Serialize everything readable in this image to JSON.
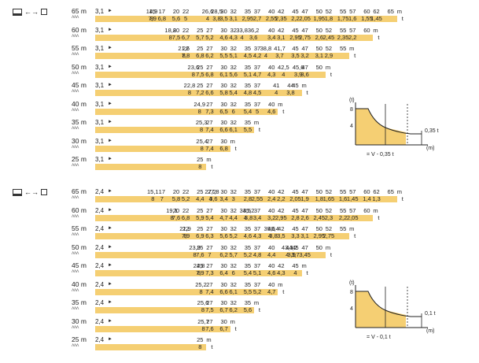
{
  "sections": [
    {
      "header": {
        "mode_icon": "double-hook-icon",
        "text": "←→"
      },
      "rows": [
        {
          "jib": "65 m",
          "boom": "ᐱᐱᐱ",
          "min_radius": "3,1",
          "radius": [
            "14,9",
            "15",
            "17",
            "20",
            "22",
            "26,6",
            "28,5",
            "30",
            "32",
            "35",
            "37",
            "40",
            "42",
            "45",
            "47",
            "50",
            "52",
            "55",
            "57",
            "60",
            "62",
            "65"
          ],
          "load": [
            "8",
            "7,9",
            "6,8",
            "5,6",
            "5",
            "4",
            "3,8",
            "3,5",
            "3,1",
            "2,95",
            "2,7",
            "2,55",
            "2,35",
            "2,2",
            "2,05",
            "1,95",
            "1,8",
            "1,75",
            "1,6",
            "1,55",
            "1,45"
          ],
          "radius_unit": "m",
          "load_unit": "t"
        },
        {
          "jib": "60 m",
          "boom": "ᐱᐱᐱ",
          "min_radius": "3,1",
          "radius": [
            "18,8",
            "20",
            "22",
            "25",
            "27",
            "30",
            "32",
            "33,8",
            "36,2",
            "40",
            "42",
            "45",
            "47",
            "50",
            "52",
            "55",
            "57",
            "60"
          ],
          "load": [
            "8",
            "7,5",
            "6,7",
            "5,7",
            "5,2",
            "4,6",
            "4,3",
            "4",
            "3,6",
            "3,4",
            "3,1",
            "2,95",
            "2,75",
            "2,6",
            "2,45",
            "2,35",
            "2,2"
          ],
          "radius_unit": "m",
          "load_unit": "t"
        },
        {
          "jib": "55 m",
          "boom": "ᐱᐱᐱ",
          "min_radius": "3,1",
          "radius": [
            "21,6",
            "22",
            "25",
            "27",
            "30",
            "32",
            "35",
            "37",
            "38,8",
            "41,7",
            "45",
            "47",
            "50",
            "52",
            "55"
          ],
          "load": [
            "8",
            "7,8",
            "6,8",
            "6,2",
            "5,5",
            "5,1",
            "4,5",
            "4,2",
            "4",
            "3,7",
            "3,5",
            "3,2",
            "3,1",
            "2,9"
          ],
          "radius_unit": "m",
          "load_unit": "t"
        },
        {
          "jib": "50 m",
          "boom": "ᐱᐱᐱ",
          "min_radius": "3,1",
          "radius": [
            "23,6",
            "25",
            "27",
            "30",
            "32",
            "35",
            "37",
            "40",
            "42,5",
            "45,6",
            "47",
            "50"
          ],
          "load": [
            "8",
            "7,5",
            "6,8",
            "6,1",
            "5,6",
            "5,1",
            "4,7",
            "4,3",
            "4",
            "3,9",
            "3,6"
          ],
          "radius_unit": "m",
          "load_unit": "t"
        },
        {
          "jib": "45 m",
          "boom": "ᐱᐱᐱ",
          "min_radius": "3,1",
          "radius": [
            "22,8",
            "25",
            "27",
            "30",
            "32",
            "35",
            "37",
            "41",
            "44",
            "45"
          ],
          "load": [
            "8",
            "7,2",
            "6,6",
            "5,8",
            "5,4",
            "4,8",
            "4,5",
            "4",
            "3,8"
          ],
          "radius_unit": "m",
          "load_unit": "t"
        },
        {
          "jib": "40 m",
          "boom": "ᐱᐱᐱ",
          "min_radius": "3,1",
          "radius": [
            "24,9",
            "27",
            "30",
            "32",
            "35",
            "37",
            "40"
          ],
          "load": [
            "8",
            "7,3",
            "6,5",
            "6",
            "5,4",
            "5",
            "4,6"
          ],
          "radius_unit": "m",
          "load_unit": "t"
        },
        {
          "jib": "35 m",
          "boom": "ᐱᐱᐱ",
          "min_radius": "3,1",
          "radius": [
            "25,3",
            "27",
            "30",
            "32",
            "35"
          ],
          "load": [
            "8",
            "7,4",
            "6,6",
            "6,1",
            "5,5"
          ],
          "radius_unit": "m",
          "load_unit": "t"
        },
        {
          "jib": "30 m",
          "boom": "ᐱᐱᐱ",
          "min_radius": "3,1",
          "radius": [
            "25,4",
            "27",
            "30"
          ],
          "load": [
            "8",
            "7,4",
            "6,8"
          ],
          "radius_unit": "m",
          "load_unit": "t"
        },
        {
          "jib": "25 m",
          "boom": "ᐱᐱᐱ",
          "min_radius": "3,1",
          "radius": [
            "25"
          ],
          "load": [
            "8"
          ],
          "radius_unit": "m",
          "load_unit": "t"
        }
      ],
      "inset": {
        "y_label": "(t)",
        "y_max": "8",
        "y_mid": "4",
        "x_label": "(m)",
        "offset_label": "0,35 t",
        "legend": "= ᐯ - 0,35 t"
      }
    },
    {
      "header": {
        "mode_icon": "single-hook-icon",
        "text": "←→"
      },
      "rows": [
        {
          "jib": "65 m",
          "boom": "ᐱᐱᐱ",
          "min_radius": "2,4",
          "radius": [
            "15,1",
            "17",
            "20",
            "22",
            "25",
            "27,2",
            "27,8",
            "30",
            "32",
            "35",
            "37",
            "40",
            "42",
            "45",
            "47",
            "50",
            "52",
            "55",
            "57",
            "60",
            "62",
            "65"
          ],
          "load": [
            "8",
            "7",
            "5,8",
            "5,2",
            "4,4",
            "4",
            "3,6",
            "3,4",
            "3",
            "2,8",
            "2,55",
            "2,4",
            "2,2",
            "2,05",
            "1,9",
            "1,8",
            "1,65",
            "1,6",
            "1,45",
            "1,4",
            "1,3"
          ],
          "radius_unit": "m",
          "load_unit": "t"
        },
        {
          "jib": "60 m",
          "boom": "ᐱᐱᐱ",
          "min_radius": "2,4",
          "radius": [
            "19,1",
            "20",
            "22",
            "25",
            "27",
            "30",
            "32",
            "34,5",
            "35,2",
            "37",
            "40",
            "42",
            "45",
            "47",
            "50",
            "52",
            "55",
            "57",
            "60"
          ],
          "load": [
            "8",
            "7,6",
            "6,8",
            "5,9",
            "5,4",
            "4,7",
            "4,4",
            "4",
            "3,8",
            "3,4",
            "3,2",
            "2,95",
            "2,8",
            "2,6",
            "2,45",
            "2,3",
            "2,2",
            "2,05"
          ],
          "radius_unit": "m",
          "load_unit": "t"
        },
        {
          "jib": "55 m",
          "boom": "ᐱᐱᐱ",
          "min_radius": "2,4",
          "radius": [
            "21,9",
            "22",
            "25",
            "27",
            "30",
            "32",
            "35",
            "37",
            "39,6",
            "40,4",
            "42",
            "45",
            "47",
            "50",
            "52",
            "55"
          ],
          "load": [
            "8",
            "7,9",
            "6,9",
            "6,3",
            "5,6",
            "5,2",
            "4,6",
            "4,3",
            "4",
            "3,8",
            "3,5",
            "3,3",
            "3,1",
            "2,95",
            "2,75"
          ],
          "radius_unit": "m",
          "load_unit": "t"
        },
        {
          "jib": "50 m",
          "boom": "ᐱᐱᐱ",
          "min_radius": "2,4",
          "radius": [
            "23,9",
            "25",
            "27",
            "30",
            "32",
            "35",
            "37",
            "40",
            "43,3",
            "44,2",
            "45",
            "47",
            "50"
          ],
          "load": [
            "8",
            "7,6",
            "7",
            "6,2",
            "5,7",
            "5,2",
            "4,8",
            "4,4",
            "4",
            "3,9",
            "3,7",
            "3,45"
          ],
          "radius_unit": "m",
          "load_unit": "t"
        },
        {
          "jib": "45 m",
          "boom": "ᐱᐱᐱ",
          "min_radius": "2,4",
          "radius": [
            "24,8",
            "25",
            "27",
            "30",
            "32",
            "35",
            "37",
            "40",
            "42",
            "45"
          ],
          "load": [
            "8",
            "7,9",
            "7,3",
            "6,4",
            "6",
            "5,4",
            "5,1",
            "4,6",
            "4,3",
            "4"
          ],
          "radius_unit": "m",
          "load_unit": "t"
        },
        {
          "jib": "40 m",
          "boom": "ᐱᐱᐱ",
          "min_radius": "2,4",
          "radius": [
            "25,2",
            "27",
            "30",
            "32",
            "35",
            "37",
            "40"
          ],
          "load": [
            "8",
            "7,4",
            "6,6",
            "6,1",
            "5,5",
            "5,2",
            "4,7"
          ],
          "radius_unit": "m",
          "load_unit": "t"
        },
        {
          "jib": "35 m",
          "boom": "ᐱᐱᐱ",
          "min_radius": "2,4",
          "radius": [
            "25,6",
            "27",
            "30",
            "32",
            "35"
          ],
          "load": [
            "8",
            "7,5",
            "6,7",
            "6,2",
            "5,6"
          ],
          "radius_unit": "m",
          "load_unit": "t"
        },
        {
          "jib": "30 m",
          "boom": "ᐱᐱᐱ",
          "min_radius": "2,4",
          "radius": [
            "25,7",
            "27",
            "30"
          ],
          "load": [
            "8",
            "7,6",
            "6,7"
          ],
          "radius_unit": "m",
          "load_unit": "t"
        },
        {
          "jib": "25 m",
          "boom": "ᐱᐱᐱ",
          "min_radius": "2,4",
          "radius": [
            "25"
          ],
          "load": [
            "8"
          ],
          "radius_unit": "m",
          "load_unit": "t"
        }
      ],
      "inset": {
        "y_label": "(t)",
        "y_max": "8",
        "y_mid": "4",
        "x_label": "(m)",
        "offset_label": "0,1 t",
        "legend": "= ᐯ - 0,1 t"
      }
    }
  ],
  "colors": {
    "bar": "#f5cf73",
    "fill": "#f5cf73",
    "ink": "#222222"
  }
}
